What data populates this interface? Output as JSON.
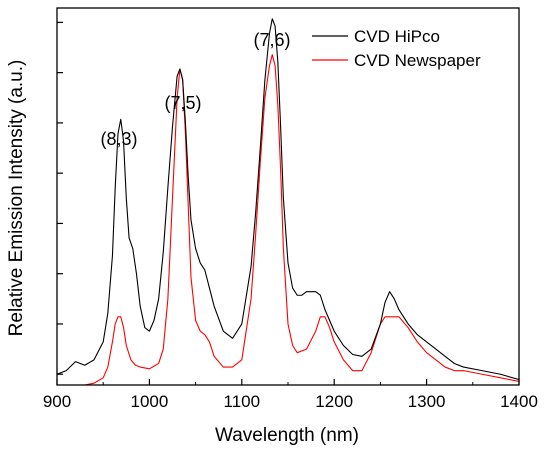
{
  "chart_data": {
    "type": "line",
    "title": "",
    "xlabel": "Wavelength (nm)",
    "ylabel": "Relative Emission Intensity (a.u.)",
    "xlim": [
      900,
      1400
    ],
    "ylim": [
      0,
      1.05
    ],
    "x_ticks": [
      900,
      1000,
      1100,
      1200,
      1300,
      1400
    ],
    "x_tick_labels": [
      "900",
      "1000",
      "1100",
      "1200",
      "1300",
      "1400"
    ],
    "y_ticks": [
      0.03,
      0.17,
      0.31,
      0.45,
      0.59,
      0.73,
      0.87,
      1.01
    ],
    "y_tick_labels_shown": false,
    "grid": false,
    "legend_position": "top-right",
    "annotations": [
      {
        "text": "(8,3)",
        "x": 968,
        "y": 0.74
      },
      {
        "text": "(7,5)",
        "x": 1035,
        "y": 0.87
      },
      {
        "text": "(7,6)",
        "x": 1134,
        "y": 1.01
      }
    ],
    "series": [
      {
        "name": "CVD HiPco",
        "color": "#000000",
        "x": [
          900,
          910,
          920,
          930,
          940,
          950,
          955,
          960,
          963,
          966,
          969,
          972,
          975,
          978,
          982,
          986,
          990,
          995,
          1000,
          1005,
          1010,
          1015,
          1020,
          1025,
          1030,
          1033,
          1036,
          1039,
          1042,
          1045,
          1050,
          1055,
          1060,
          1065,
          1070,
          1080,
          1090,
          1100,
          1110,
          1115,
          1120,
          1125,
          1130,
          1133,
          1136,
          1139,
          1142,
          1145,
          1150,
          1155,
          1160,
          1165,
          1170,
          1180,
          1185,
          1190,
          1200,
          1210,
          1220,
          1230,
          1240,
          1250,
          1255,
          1260,
          1265,
          1270,
          1280,
          1290,
          1300,
          1310,
          1320,
          1330,
          1340,
          1360,
          1380,
          1400
        ],
        "values": [
          0.03,
          0.04,
          0.065,
          0.055,
          0.07,
          0.12,
          0.2,
          0.36,
          0.55,
          0.7,
          0.74,
          0.68,
          0.52,
          0.41,
          0.38,
          0.31,
          0.22,
          0.16,
          0.15,
          0.18,
          0.24,
          0.37,
          0.55,
          0.72,
          0.86,
          0.88,
          0.85,
          0.73,
          0.58,
          0.46,
          0.38,
          0.34,
          0.32,
          0.27,
          0.22,
          0.15,
          0.13,
          0.17,
          0.33,
          0.48,
          0.66,
          0.85,
          0.98,
          1.02,
          1.0,
          0.9,
          0.72,
          0.52,
          0.34,
          0.27,
          0.25,
          0.25,
          0.26,
          0.26,
          0.25,
          0.21,
          0.15,
          0.11,
          0.085,
          0.08,
          0.1,
          0.17,
          0.23,
          0.26,
          0.24,
          0.21,
          0.17,
          0.14,
          0.12,
          0.1,
          0.08,
          0.06,
          0.05,
          0.04,
          0.03,
          0.015
        ]
      },
      {
        "name": "CVD Newspaper",
        "color": "#ff0000",
        "x": [
          900,
          910,
          920,
          930,
          940,
          950,
          955,
          960,
          963,
          966,
          969,
          972,
          975,
          980,
          985,
          990,
          1000,
          1010,
          1015,
          1020,
          1025,
          1030,
          1033,
          1036,
          1039,
          1042,
          1045,
          1050,
          1055,
          1060,
          1065,
          1070,
          1080,
          1090,
          1100,
          1110,
          1115,
          1120,
          1125,
          1130,
          1133,
          1136,
          1139,
          1142,
          1145,
          1150,
          1155,
          1160,
          1170,
          1180,
          1185,
          1190,
          1195,
          1200,
          1210,
          1220,
          1230,
          1240,
          1250,
          1255,
          1260,
          1270,
          1280,
          1290,
          1300,
          1310,
          1320,
          1330,
          1340,
          1360,
          1380,
          1400
        ],
        "values": [
          -0.01,
          -0.01,
          -0.005,
          0.0,
          0.005,
          0.02,
          0.05,
          0.12,
          0.17,
          0.19,
          0.19,
          0.16,
          0.11,
          0.07,
          0.055,
          0.05,
          0.045,
          0.06,
          0.1,
          0.24,
          0.52,
          0.8,
          0.88,
          0.85,
          0.7,
          0.5,
          0.3,
          0.18,
          0.15,
          0.14,
          0.12,
          0.08,
          0.05,
          0.05,
          0.07,
          0.24,
          0.42,
          0.62,
          0.8,
          0.89,
          0.92,
          0.89,
          0.78,
          0.6,
          0.38,
          0.17,
          0.11,
          0.09,
          0.1,
          0.15,
          0.19,
          0.19,
          0.16,
          0.12,
          0.07,
          0.04,
          0.04,
          0.09,
          0.17,
          0.19,
          0.19,
          0.19,
          0.16,
          0.12,
          0.09,
          0.07,
          0.05,
          0.04,
          0.04,
          0.03,
          0.02,
          0.01
        ]
      }
    ]
  }
}
